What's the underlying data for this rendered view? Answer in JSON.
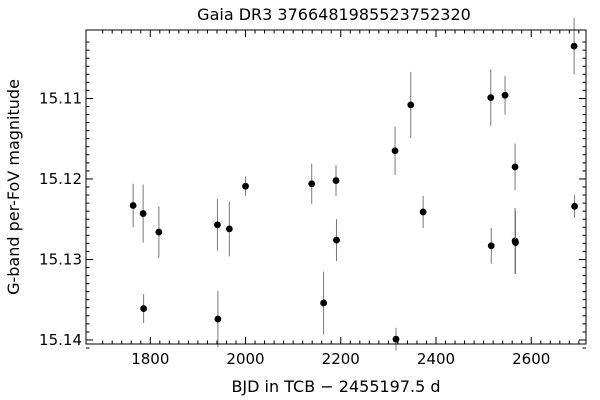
{
  "chart_data": {
    "type": "scatter",
    "title": "Gaia DR3 3766481985523752320",
    "xlabel": "BJD in TCB − 2455197.5 d",
    "ylabel": "G-band per-FoV magnitude",
    "xlim": [
      1665,
      2715
    ],
    "ylim": [
      15.1405,
      15.1015
    ],
    "y_inverted": true,
    "grid": false,
    "legend": "none",
    "x_ticks": [
      1800,
      2000,
      2200,
      2400,
      2600
    ],
    "x_tick_labels": [
      "1800",
      "2000",
      "2200",
      "2400",
      "2600"
    ],
    "y_ticks": [
      15.11,
      15.12,
      15.13,
      15.14
    ],
    "y_tick_labels": [
      "15.11",
      "15.12",
      "15.13",
      "15.14"
    ],
    "marker_color": "#000000",
    "errorbar_color": "#777777",
    "points": [
      {
        "x": 1764,
        "y": 15.1233,
        "err": 0.0027
      },
      {
        "x": 1785,
        "y": 15.1243,
        "err": 0.0036
      },
      {
        "x": 1786,
        "y": 15.1361,
        "err": 0.0018
      },
      {
        "x": 1818,
        "y": 15.1266,
        "err": 0.0032
      },
      {
        "x": 1941,
        "y": 15.1257,
        "err": 0.0032
      },
      {
        "x": 1942,
        "y": 15.1374,
        "err": 0.0035
      },
      {
        "x": 1966,
        "y": 15.1262,
        "err": 0.0034
      },
      {
        "x": 2000,
        "y": 15.1209,
        "err": 0.0012
      },
      {
        "x": 2139,
        "y": 15.1206,
        "err": 0.0025
      },
      {
        "x": 2164,
        "y": 15.1354,
        "err": 0.0039
      },
      {
        "x": 2190,
        "y": 15.1202,
        "err": 0.0019
      },
      {
        "x": 2191,
        "y": 15.1276,
        "err": 0.0026
      },
      {
        "x": 2314,
        "y": 15.1165,
        "err": 0.003
      },
      {
        "x": 2316,
        "y": 15.1399,
        "err": 0.0014
      },
      {
        "x": 2347,
        "y": 15.1108,
        "err": 0.0041
      },
      {
        "x": 2373,
        "y": 15.1241,
        "err": 0.002
      },
      {
        "x": 2515,
        "y": 15.1099,
        "err": 0.0035
      },
      {
        "x": 2516,
        "y": 15.1283,
        "err": 0.0022
      },
      {
        "x": 2545,
        "y": 15.1096,
        "err": 0.0024
      },
      {
        "x": 2566,
        "y": 15.1185,
        "err": 0.0029
      },
      {
        "x": 2566,
        "y": 15.1277,
        "err": 0.0041
      },
      {
        "x": 2567,
        "y": 15.1279,
        "err": 0.0039
      },
      {
        "x": 2690,
        "y": 15.1035,
        "err": 0.0035
      },
      {
        "x": 2691,
        "y": 15.1234,
        "err": 0.0014
      }
    ]
  }
}
